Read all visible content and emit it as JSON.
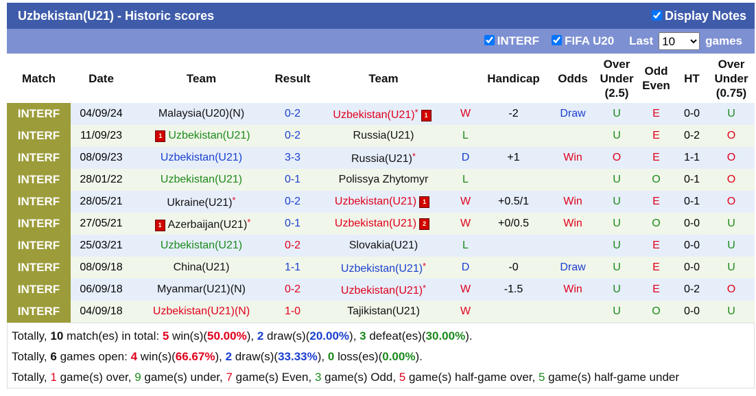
{
  "header": {
    "title": "Uzbekistan(U21) - Historic scores",
    "display_notes": "Display Notes"
  },
  "filters": {
    "interf": "INTERF",
    "fifa": "FIFA U20",
    "last": "Last",
    "select": "10",
    "games": "games"
  },
  "columns": [
    "Match",
    "Date",
    "Team",
    "Result",
    "Team",
    "Handicap",
    "Odds",
    "Over Under (2.5)",
    "Odd Even",
    "HT",
    "Over Under (0.75)"
  ],
  "colors": {
    "match_bg": "#9c9c3a",
    "row_bg": [
      "#e6eefa",
      "#f1f6ea"
    ],
    "outcome": {
      "W": "#e0001b",
      "D": "#1a3fcf",
      "L": "#1b8a1b"
    },
    "odds": {
      "Win": "#e0001b",
      "Draw": "#1a3fcf"
    },
    "ou": {
      "U": "#1b8a1b",
      "O": "#e0001b"
    },
    "oe": {
      "E": "#e0001b",
      "O": "#1b8a1b"
    }
  },
  "rows": [
    {
      "match": "INTERF",
      "date": "04/09/24",
      "home": "Malaysia(U20)(N)",
      "home_color": "#111111",
      "result": "0-2",
      "result_color": "#1a3fcf",
      "away": "Uzbekistan(U21)",
      "away_color": "#e0001b",
      "away_star": "*",
      "away_card": "1",
      "outcome": "W",
      "handicap": "-2",
      "odds": "Draw",
      "ou": "U",
      "oe": "E",
      "ht": "0-0",
      "ou2": "U"
    },
    {
      "match": "INTERF",
      "date": "11/09/23",
      "home_card": "1",
      "home": "Uzbekistan(U21)",
      "home_color": "#1b8a1b",
      "result": "0-2",
      "result_color": "#1a3fcf",
      "away": "Russia(U21)",
      "away_color": "#111111",
      "outcome": "L",
      "ou": "U",
      "oe": "E",
      "ht": "0-2",
      "ou2": "O"
    },
    {
      "match": "INTERF",
      "date": "08/09/23",
      "home": "Uzbekistan(U21)",
      "home_color": "#1a3fcf",
      "result": "3-3",
      "result_color": "#1a3fcf",
      "away": "Russia(U21)",
      "away_color": "#111111",
      "away_star": "*",
      "outcome": "D",
      "handicap": "+1",
      "odds": "Win",
      "ou": "O",
      "oe": "E",
      "ht": "1-1",
      "ou2": "O"
    },
    {
      "match": "INTERF",
      "date": "28/01/22",
      "home": "Uzbekistan(U21)",
      "home_color": "#1b8a1b",
      "result": "0-1",
      "result_color": "#1a3fcf",
      "away": "Polissya Zhytomyr",
      "away_color": "#111111",
      "outcome": "L",
      "ou": "U",
      "oe": "O",
      "ht": "0-1",
      "ou2": "O"
    },
    {
      "match": "INTERF",
      "date": "28/05/21",
      "home": "Ukraine(U21)",
      "home_color": "#111111",
      "home_star": "*",
      "result": "0-2",
      "result_color": "#1a3fcf",
      "away": "Uzbekistan(U21)",
      "away_color": "#e0001b",
      "away_card": "1",
      "outcome": "W",
      "handicap": "+0.5/1",
      "odds": "Win",
      "ou": "U",
      "oe": "E",
      "ht": "0-1",
      "ou2": "O"
    },
    {
      "match": "INTERF",
      "date": "27/05/21",
      "home_card": "1",
      "home": "Azerbaijan(U21)",
      "home_color": "#111111",
      "home_star": "*",
      "result": "0-1",
      "result_color": "#1a3fcf",
      "away": "Uzbekistan(U21)",
      "away_color": "#e0001b",
      "away_card": "2",
      "outcome": "W",
      "handicap": "+0/0.5",
      "odds": "Win",
      "ou": "U",
      "oe": "O",
      "ht": "0-0",
      "ou2": "U"
    },
    {
      "match": "INTERF",
      "date": "25/03/21",
      "home": "Uzbekistan(U21)",
      "home_color": "#1b8a1b",
      "result": "0-2",
      "result_color": "#e0001b",
      "away": "Slovakia(U21)",
      "away_color": "#111111",
      "outcome": "L",
      "ou": "U",
      "oe": "E",
      "ht": "0-0",
      "ou2": "U"
    },
    {
      "match": "INTERF",
      "date": "08/09/18",
      "home": "China(U21)",
      "home_color": "#111111",
      "result": "1-1",
      "result_color": "#1a3fcf",
      "away": "Uzbekistan(U21)",
      "away_color": "#1a3fcf",
      "away_star": "*",
      "outcome": "D",
      "handicap": "-0",
      "odds": "Draw",
      "ou": "U",
      "oe": "E",
      "ht": "0-0",
      "ou2": "U"
    },
    {
      "match": "INTERF",
      "date": "06/09/18",
      "home": "Myanmar(U21)(N)",
      "home_color": "#111111",
      "result": "0-2",
      "result_color": "#e0001b",
      "away": "Uzbekistan(U21)",
      "away_color": "#e0001b",
      "away_star": "*",
      "outcome": "W",
      "handicap": "-1.5",
      "odds": "Win",
      "ou": "U",
      "oe": "E",
      "ht": "0-2",
      "ou2": "O"
    },
    {
      "match": "INTERF",
      "date": "04/09/18",
      "home": "Uzbekistan(U21)(N)",
      "home_color": "#e0001b",
      "result": "1-0",
      "result_color": "#e0001b",
      "away": "Tajikistan(U21)",
      "away_color": "#111111",
      "outcome": "W",
      "ou": "U",
      "oe": "O",
      "ht": "0-0",
      "ou2": "U"
    }
  ],
  "summary": [
    [
      {
        "t": "Totally, "
      },
      {
        "t": "10",
        "b": true
      },
      {
        "t": " match(es) in total: "
      },
      {
        "t": "5",
        "b": true,
        "c": "#e0001b"
      },
      {
        "t": " win(s)("
      },
      {
        "t": "50.00%",
        "b": true,
        "c": "#e0001b"
      },
      {
        "t": "), "
      },
      {
        "t": "2",
        "b": true,
        "c": "#1a3fcf"
      },
      {
        "t": " draw(s)("
      },
      {
        "t": "20.00%",
        "b": true,
        "c": "#1a3fcf"
      },
      {
        "t": "), "
      },
      {
        "t": "3",
        "b": true,
        "c": "#1b8a1b"
      },
      {
        "t": " defeat(es)("
      },
      {
        "t": "30.00%",
        "b": true,
        "c": "#1b8a1b"
      },
      {
        "t": ")."
      }
    ],
    [
      {
        "t": "Totally, "
      },
      {
        "t": "6",
        "b": true
      },
      {
        "t": " games open: "
      },
      {
        "t": "4",
        "b": true,
        "c": "#e0001b"
      },
      {
        "t": " win(s)("
      },
      {
        "t": "66.67%",
        "b": true,
        "c": "#e0001b"
      },
      {
        "t": "), "
      },
      {
        "t": "2",
        "b": true,
        "c": "#1a3fcf"
      },
      {
        "t": " draw(s)("
      },
      {
        "t": "33.33%",
        "b": true,
        "c": "#1a3fcf"
      },
      {
        "t": "), "
      },
      {
        "t": "0",
        "b": true,
        "c": "#1b8a1b"
      },
      {
        "t": " loss(es)("
      },
      {
        "t": "0.00%",
        "b": true,
        "c": "#1b8a1b"
      },
      {
        "t": ")."
      }
    ],
    [
      {
        "t": "Totally, "
      },
      {
        "t": "1",
        "c": "#e0001b"
      },
      {
        "t": " game(s) over, "
      },
      {
        "t": "9",
        "c": "#1b8a1b"
      },
      {
        "t": " game(s) under, "
      },
      {
        "t": "7",
        "c": "#e0001b"
      },
      {
        "t": " game(s) Even, "
      },
      {
        "t": "3",
        "c": "#1b8a1b"
      },
      {
        "t": " game(s) Odd, "
      },
      {
        "t": "5",
        "c": "#e0001b"
      },
      {
        "t": " game(s) half-game over, "
      },
      {
        "t": "5",
        "c": "#1b8a1b"
      },
      {
        "t": " game(s) half-game under"
      }
    ]
  ]
}
